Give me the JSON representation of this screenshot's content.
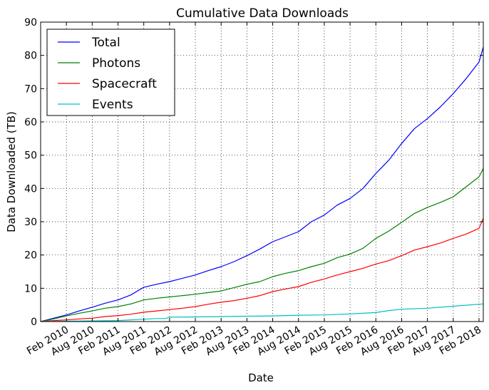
{
  "chart_data": {
    "type": "line",
    "title": "Cumulative Data Downloads",
    "xlabel": "Date",
    "ylabel": "Data Downloaded (TB)",
    "ylim": [
      0,
      90
    ],
    "xlim": [
      "2009-08",
      "2018-03"
    ],
    "yticks": [
      0,
      10,
      20,
      30,
      40,
      50,
      60,
      70,
      80,
      90
    ],
    "xticks": [
      {
        "value": "2010-02",
        "label": "Feb 2010"
      },
      {
        "value": "2010-08",
        "label": "Aug 2010"
      },
      {
        "value": "2011-02",
        "label": "Feb 2011"
      },
      {
        "value": "2011-08",
        "label": "Aug 2011"
      },
      {
        "value": "2012-02",
        "label": "Feb 2012"
      },
      {
        "value": "2012-08",
        "label": "Aug 2012"
      },
      {
        "value": "2013-02",
        "label": "Feb 2013"
      },
      {
        "value": "2013-08",
        "label": "Aug 2013"
      },
      {
        "value": "2014-02",
        "label": "Feb 2014"
      },
      {
        "value": "2014-08",
        "label": "Aug 2014"
      },
      {
        "value": "2015-02",
        "label": "Feb 2015"
      },
      {
        "value": "2015-08",
        "label": "Aug 2015"
      },
      {
        "value": "2016-02",
        "label": "Feb 2016"
      },
      {
        "value": "2016-08",
        "label": "Aug 2016"
      },
      {
        "value": "2017-02",
        "label": "Feb 2017"
      },
      {
        "value": "2017-08",
        "label": "Aug 2017"
      },
      {
        "value": "2018-02",
        "label": "Feb 2018"
      }
    ],
    "grid": true,
    "legend_position": "top-left",
    "series": [
      {
        "name": "Total",
        "color": "#0000ff",
        "points": [
          [
            "2009-08",
            0.0
          ],
          [
            "2009-11",
            1.0
          ],
          [
            "2010-02",
            2.0
          ],
          [
            "2010-05",
            3.2
          ],
          [
            "2010-08",
            4.3
          ],
          [
            "2010-11",
            5.5
          ],
          [
            "2011-02",
            6.5
          ],
          [
            "2011-05",
            8.0
          ],
          [
            "2011-08",
            10.3
          ],
          [
            "2011-11",
            11.2
          ],
          [
            "2012-02",
            12.0
          ],
          [
            "2012-05",
            13.0
          ],
          [
            "2012-08",
            14.0
          ],
          [
            "2012-11",
            15.3
          ],
          [
            "2013-02",
            16.5
          ],
          [
            "2013-05",
            18.0
          ],
          [
            "2013-08",
            19.8
          ],
          [
            "2013-11",
            21.8
          ],
          [
            "2014-02",
            24.0
          ],
          [
            "2014-05",
            25.5
          ],
          [
            "2014-08",
            27.0
          ],
          [
            "2014-11",
            30.0
          ],
          [
            "2015-02",
            32.0
          ],
          [
            "2015-05",
            35.0
          ],
          [
            "2015-08",
            37.0
          ],
          [
            "2015-11",
            40.0
          ],
          [
            "2016-02",
            44.5
          ],
          [
            "2016-05",
            48.5
          ],
          [
            "2016-08",
            53.5
          ],
          [
            "2016-11",
            58.0
          ],
          [
            "2017-02",
            61.0
          ],
          [
            "2017-05",
            64.5
          ],
          [
            "2017-08",
            68.5
          ],
          [
            "2017-11",
            73.0
          ],
          [
            "2018-02",
            78.0
          ],
          [
            "2018-03",
            82.5
          ]
        ]
      },
      {
        "name": "Photons",
        "color": "#008000",
        "points": [
          [
            "2009-08",
            0.0
          ],
          [
            "2009-11",
            0.8
          ],
          [
            "2010-02",
            1.7
          ],
          [
            "2010-05",
            2.5
          ],
          [
            "2010-08",
            3.2
          ],
          [
            "2010-11",
            4.0
          ],
          [
            "2011-02",
            4.5
          ],
          [
            "2011-05",
            5.3
          ],
          [
            "2011-08",
            6.5
          ],
          [
            "2011-11",
            7.0
          ],
          [
            "2012-02",
            7.4
          ],
          [
            "2012-05",
            7.8
          ],
          [
            "2012-08",
            8.2
          ],
          [
            "2012-11",
            8.7
          ],
          [
            "2013-02",
            9.2
          ],
          [
            "2013-05",
            10.2
          ],
          [
            "2013-08",
            11.2
          ],
          [
            "2013-11",
            12.0
          ],
          [
            "2014-02",
            13.5
          ],
          [
            "2014-05",
            14.5
          ],
          [
            "2014-08",
            15.3
          ],
          [
            "2014-11",
            16.5
          ],
          [
            "2015-02",
            17.5
          ],
          [
            "2015-05",
            19.2
          ],
          [
            "2015-08",
            20.3
          ],
          [
            "2015-11",
            22.0
          ],
          [
            "2016-02",
            25.0
          ],
          [
            "2016-05",
            27.2
          ],
          [
            "2016-08",
            29.8
          ],
          [
            "2016-11",
            32.5
          ],
          [
            "2017-02",
            34.3
          ],
          [
            "2017-05",
            35.8
          ],
          [
            "2017-08",
            37.5
          ],
          [
            "2017-11",
            40.5
          ],
          [
            "2018-02",
            43.5
          ],
          [
            "2018-03",
            46.0
          ]
        ]
      },
      {
        "name": "Spacecraft",
        "color": "#ff0000",
        "points": [
          [
            "2009-08",
            0.0
          ],
          [
            "2009-11",
            0.3
          ],
          [
            "2010-02",
            0.5
          ],
          [
            "2010-05",
            0.8
          ],
          [
            "2010-08",
            1.0
          ],
          [
            "2010-11",
            1.5
          ],
          [
            "2011-02",
            1.8
          ],
          [
            "2011-05",
            2.2
          ],
          [
            "2011-08",
            2.8
          ],
          [
            "2011-11",
            3.2
          ],
          [
            "2012-02",
            3.6
          ],
          [
            "2012-05",
            4.0
          ],
          [
            "2012-08",
            4.5
          ],
          [
            "2012-11",
            5.2
          ],
          [
            "2013-02",
            5.8
          ],
          [
            "2013-05",
            6.3
          ],
          [
            "2013-08",
            7.0
          ],
          [
            "2013-11",
            7.8
          ],
          [
            "2014-02",
            9.0
          ],
          [
            "2014-05",
            9.8
          ],
          [
            "2014-08",
            10.5
          ],
          [
            "2014-11",
            11.8
          ],
          [
            "2015-02",
            12.8
          ],
          [
            "2015-05",
            14.0
          ],
          [
            "2015-08",
            15.0
          ],
          [
            "2015-11",
            16.0
          ],
          [
            "2016-02",
            17.3
          ],
          [
            "2016-05",
            18.3
          ],
          [
            "2016-08",
            19.8
          ],
          [
            "2016-11",
            21.5
          ],
          [
            "2017-02",
            22.5
          ],
          [
            "2017-05",
            23.6
          ],
          [
            "2017-08",
            25.0
          ],
          [
            "2017-11",
            26.3
          ],
          [
            "2018-02",
            28.0
          ],
          [
            "2018-03",
            31.0
          ]
        ]
      },
      {
        "name": "Events",
        "color": "#00bfbf",
        "points": [
          [
            "2009-08",
            0.0
          ],
          [
            "2010-02",
            0.1
          ],
          [
            "2010-08",
            0.2
          ],
          [
            "2011-02",
            0.3
          ],
          [
            "2011-08",
            0.7
          ],
          [
            "2011-11",
            0.9
          ],
          [
            "2012-01",
            0.9
          ],
          [
            "2012-02",
            1.3
          ],
          [
            "2012-08",
            1.4
          ],
          [
            "2013-02",
            1.5
          ],
          [
            "2013-08",
            1.6
          ],
          [
            "2014-02",
            1.7
          ],
          [
            "2014-08",
            1.9
          ],
          [
            "2015-02",
            2.0
          ],
          [
            "2015-08",
            2.3
          ],
          [
            "2016-02",
            2.7
          ],
          [
            "2016-05",
            3.3
          ],
          [
            "2016-08",
            3.7
          ],
          [
            "2017-02",
            4.0
          ],
          [
            "2017-08",
            4.6
          ],
          [
            "2018-02",
            5.2
          ],
          [
            "2018-03",
            5.3
          ]
        ]
      }
    ]
  }
}
